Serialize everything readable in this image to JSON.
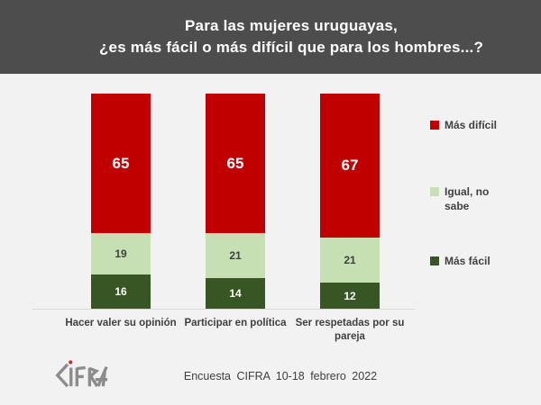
{
  "header": {
    "title_line1": "Para las mujeres uruguayas,",
    "title_line2": "¿es más fácil o más difícil que para los hombres...?",
    "bg_color": "#4D4D4D",
    "text_color": "#FFFFFF"
  },
  "chart_data": {
    "type": "bar",
    "subtype": "stacked-column-100",
    "title": "Para las mujeres uruguayas, ¿es más fácil o más difícil que para los hombres...?",
    "categories": [
      "Hacer valer su opinión",
      "Participar en política",
      "Ser respetadas por su pareja"
    ],
    "series": [
      {
        "name": "Más difícil",
        "color": "#C00000",
        "label_color": "#FFFFFF",
        "values": [
          65,
          65,
          67
        ]
      },
      {
        "name": "Igual, no sabe",
        "color": "#C6E0B4",
        "label_color": "#404040",
        "values": [
          19,
          21,
          21
        ]
      },
      {
        "name": "Más fácil",
        "color": "#375623",
        "label_color": "#FFFFFF",
        "values": [
          16,
          14,
          12
        ]
      }
    ],
    "ylim": [
      0,
      100
    ],
    "grid": false,
    "legend_position": "right",
    "stack_order_top_to_bottom": [
      "Más difícil",
      "Igual, no sabe",
      "Más fácil"
    ]
  },
  "footer": {
    "logo_text": "CIFRA",
    "caption": "Encuesta CIFRA 10-18 febrero 2022"
  },
  "colors": {
    "background": "#F2F2F2",
    "baseline": "#D9D9D9",
    "text": "#404040"
  }
}
